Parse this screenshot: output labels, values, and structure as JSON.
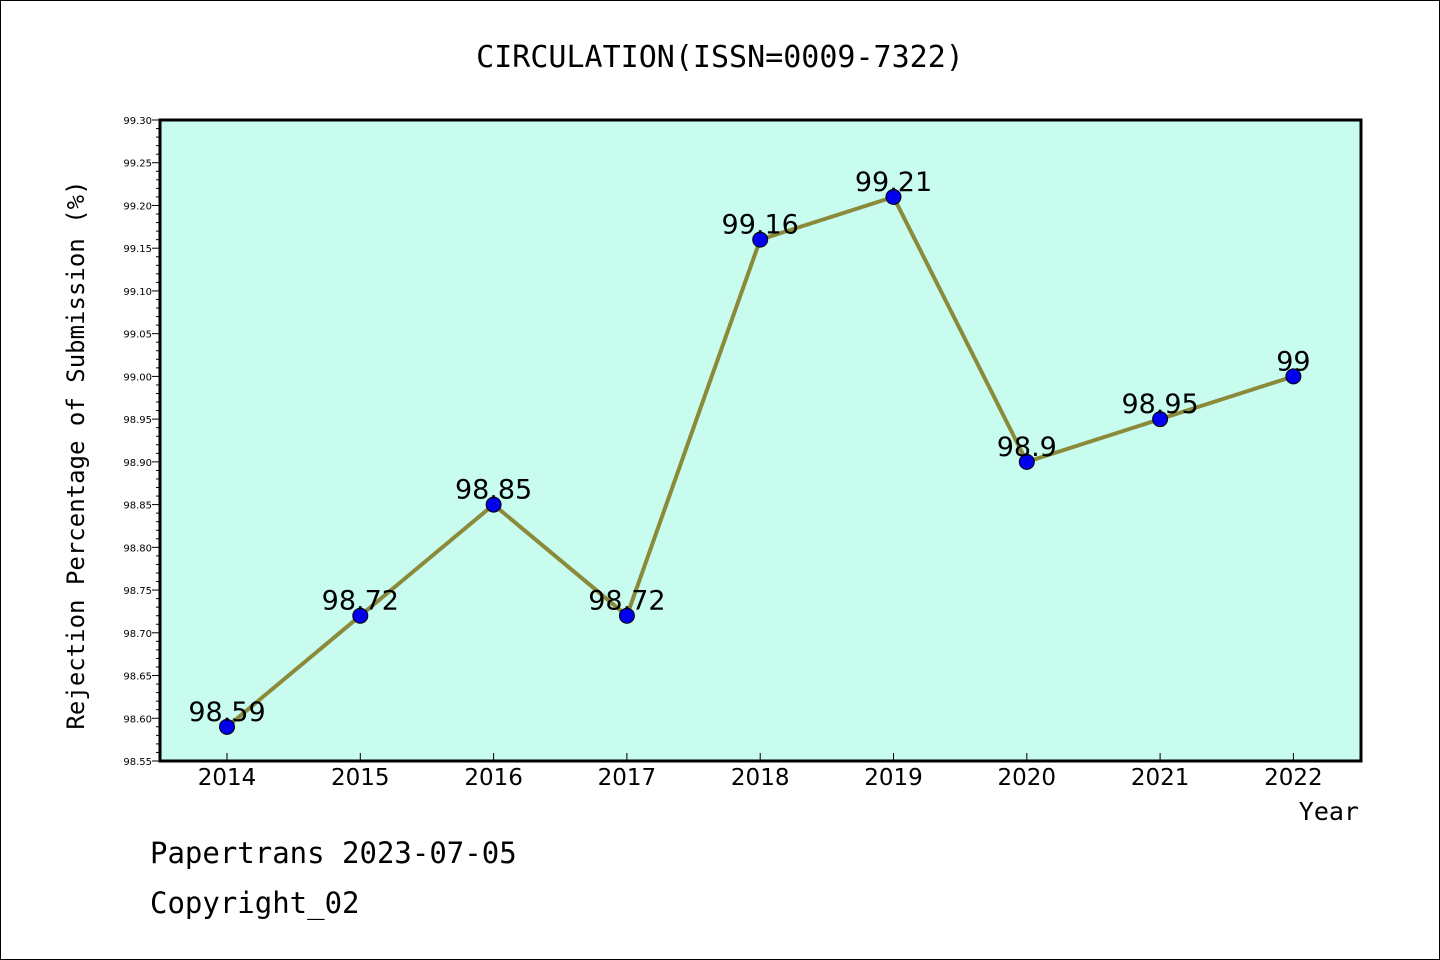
{
  "chart_data": {
    "type": "line",
    "title": "CIRCULATION(ISSN=0009-7322)",
    "xlabel": "Year",
    "ylabel": "Rejection Percentage of Submission (%)",
    "x": [
      "2014",
      "2015",
      "2016",
      "2017",
      "2018",
      "2019",
      "2020",
      "2021",
      "2022"
    ],
    "series": [
      {
        "values": [
          98.59,
          98.72,
          98.85,
          98.72,
          99.16,
          99.21,
          98.9,
          98.95,
          99
        ],
        "labels": [
          "98.59",
          "98.72",
          "98.85",
          "98.72",
          "99.16",
          "99.21",
          "98.9",
          "98.95",
          "99"
        ],
        "line_color": "#8b8a3a",
        "marker_color": "#0000ee"
      }
    ],
    "ylim": [
      98.55,
      99.3
    ],
    "yticks": [
      "98.55",
      "98.60",
      "98.65",
      "98.70",
      "98.75",
      "98.80",
      "98.85",
      "98.90",
      "98.95",
      "99.00",
      "99.05",
      "99.10",
      "99.15",
      "99.20",
      "99.25",
      "99.30"
    ],
    "plot_background": "#c8fcee",
    "grid": false,
    "legend": "none"
  },
  "footer": {
    "line1": "Papertrans 2023-07-05",
    "line2": "Copyright_02"
  }
}
